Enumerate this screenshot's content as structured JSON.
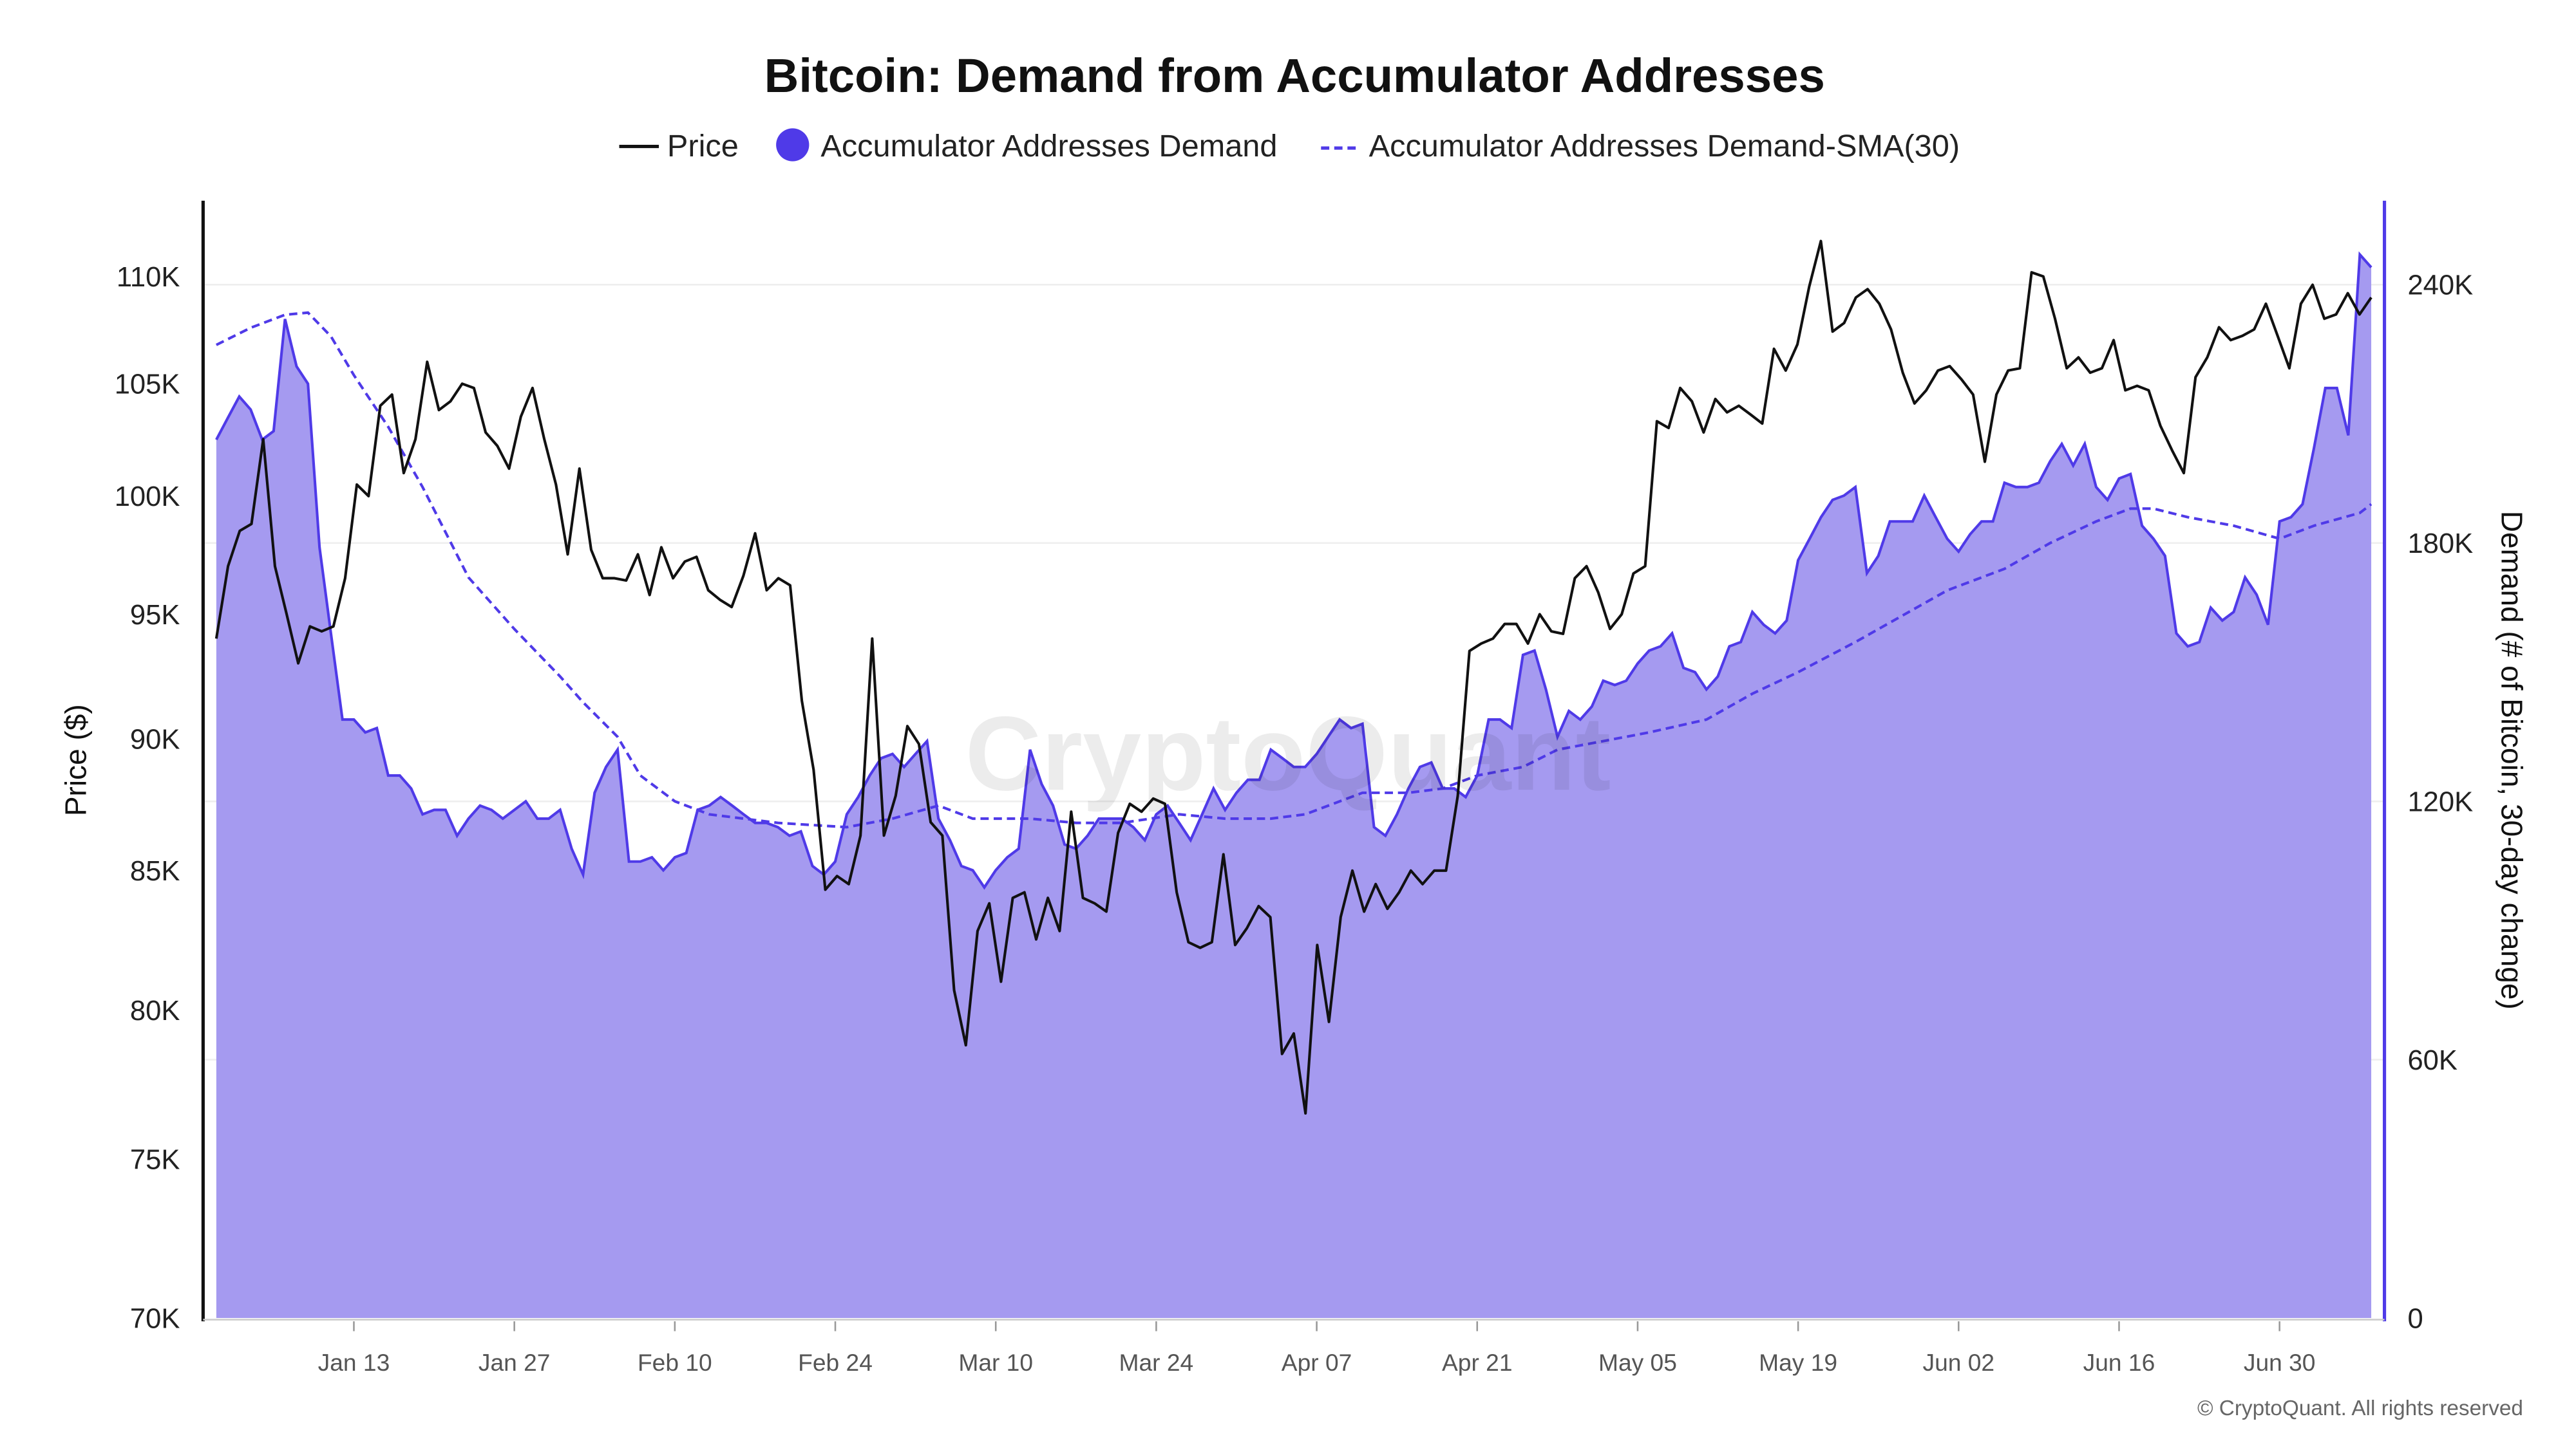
{
  "chart_data": {
    "type": "line",
    "title": "Bitcoin: Demand from Accumulator Addresses",
    "legend": [
      {
        "label": "Price",
        "color": "#111111",
        "style": "solid-line"
      },
      {
        "label": "Accumulator Addresses Demand",
        "color": "#4f3ae8",
        "style": "area"
      },
      {
        "label": "Accumulator Addresses Demand-SMA(30)",
        "color": "#4f3ae8",
        "style": "dashed-line"
      }
    ],
    "legend_position": "top-center",
    "x_range_days": [
      0,
      188
    ],
    "x_ticks": [
      {
        "day": 12,
        "label": "Jan 13"
      },
      {
        "day": 26,
        "label": "Jan 27"
      },
      {
        "day": 40,
        "label": "Feb 10"
      },
      {
        "day": 54,
        "label": "Feb 24"
      },
      {
        "day": 68,
        "label": "Mar 10"
      },
      {
        "day": 82,
        "label": "Mar 24"
      },
      {
        "day": 96,
        "label": "Apr 07"
      },
      {
        "day": 110,
        "label": "Apr 21"
      },
      {
        "day": 124,
        "label": "May 05"
      },
      {
        "day": 138,
        "label": "May 19"
      },
      {
        "day": 152,
        "label": "Jun 02"
      },
      {
        "day": 166,
        "label": "Jun 16"
      },
      {
        "day": 180,
        "label": "Jun 30"
      }
    ],
    "y_left": {
      "label": "Price ($)",
      "scale": "log",
      "range": [
        70000,
        114000
      ],
      "ticks": [
        {
          "v": 70000,
          "label": "70K"
        },
        {
          "v": 75000,
          "label": "75K"
        },
        {
          "v": 80000,
          "label": "80K"
        },
        {
          "v": 85000,
          "label": "85K"
        },
        {
          "v": 90000,
          "label": "90K"
        },
        {
          "v": 95000,
          "label": "95K"
        },
        {
          "v": 100000,
          "label": "100K"
        },
        {
          "v": 105000,
          "label": "105K"
        },
        {
          "v": 110000,
          "label": "110K"
        }
      ]
    },
    "y_right": {
      "label": "Demand (# of Bitcoin, 30-day change)",
      "scale": "linear",
      "range": [
        0,
        260000
      ],
      "ticks": [
        {
          "v": 0,
          "label": "0"
        },
        {
          "v": 60000,
          "label": "60K"
        },
        {
          "v": 120000,
          "label": "120K"
        },
        {
          "v": 180000,
          "label": "180K"
        },
        {
          "v": 240000,
          "label": "240K"
        }
      ]
    },
    "grid": true,
    "price_k": [
      94.0,
      97,
      98.5,
      98.8,
      102.5,
      97,
      95,
      93,
      94.5,
      94.3,
      94.5,
      96.5,
      100.5,
      100,
      104,
      104.5,
      101,
      102.5,
      106,
      103.8,
      104.2,
      105,
      104.8,
      102.8,
      102.2,
      101.2,
      103.5,
      104.8,
      102.5,
      100.5,
      97.5,
      101.2,
      97.7,
      96.5,
      96.5,
      96.4,
      97.5,
      95.8,
      97.8,
      96.5,
      97.2,
      97.4,
      96,
      95.6,
      95.3,
      96.6,
      98.4,
      96,
      96.5,
      96.2,
      91.5,
      88.8,
      84.3,
      84.8,
      84.5,
      86.3,
      94,
      86.3,
      87.8,
      90.5,
      89.8,
      86.8,
      86.3,
      80.7,
      78.8,
      82.8,
      83.8,
      81,
      84,
      84.2,
      82.5,
      84,
      82.8,
      87.2,
      84,
      83.8,
      83.5,
      86.4,
      87.5,
      87.2,
      87.7,
      87.5,
      84.2,
      82.4,
      82.2,
      82.4,
      85.6,
      82.3,
      82.9,
      83.7,
      83.3,
      78.5,
      79.2,
      76.5,
      82.3,
      79.6,
      83.3,
      85,
      83.5,
      84.5,
      83.6,
      84.2,
      85,
      84.5,
      85,
      85,
      87.8,
      93.5,
      93.8,
      94,
      94.6,
      94.6,
      93.8,
      95,
      94.3,
      94.2,
      96.5,
      97,
      95.9,
      94.4,
      95,
      96.7,
      97,
      103.3,
      103,
      104.8,
      104.2,
      102.8,
      104.3,
      103.7,
      104,
      103.6,
      103.2,
      106.6,
      105.6,
      106.8,
      109.5,
      111.7,
      107.4,
      107.8,
      109,
      109.4,
      108.7,
      107.5,
      105.5,
      104.1,
      104.7,
      105.6,
      105.8,
      105.2,
      104.5,
      101.5,
      104.5,
      105.6,
      105.7,
      110.2,
      110,
      108,
      105.7,
      106.2,
      105.5,
      105.7,
      107,
      104.7,
      104.9,
      104.7,
      103.1,
      102,
      101,
      105.3,
      106.2,
      107.6,
      107,
      107.2,
      107.5,
      108.7,
      107.2,
      105.7,
      108.7,
      109.6,
      108,
      108.2,
      109.2,
      108.2,
      109
    ],
    "demand_k": [
      204,
      209,
      214,
      211,
      204,
      206,
      232,
      221,
      217,
      179,
      159,
      139,
      139,
      136,
      137,
      126,
      126,
      123,
      117,
      118,
      118,
      112,
      116,
      119,
      118,
      116,
      118,
      120,
      116,
      116,
      118,
      109,
      103,
      122,
      128,
      132,
      106,
      106,
      107,
      104,
      107,
      108,
      118,
      119,
      121,
      119,
      117,
      115,
      115,
      114,
      112,
      113,
      105,
      103,
      106,
      117,
      121,
      126,
      130,
      131,
      128,
      131,
      134,
      116,
      111,
      105,
      104,
      100,
      104,
      107,
      109,
      132,
      124,
      119,
      110,
      109,
      112,
      116,
      116,
      116,
      114,
      111,
      117,
      119,
      115,
      111,
      117,
      123,
      118,
      122,
      125,
      125,
      132,
      130,
      128,
      128,
      131,
      135,
      139,
      137,
      138,
      114,
      112,
      117,
      123,
      128,
      129,
      123,
      123,
      121,
      126,
      139,
      139,
      137,
      154,
      155,
      146,
      135,
      141,
      139,
      142,
      148,
      147,
      148,
      152,
      155,
      156,
      159,
      151,
      150,
      146,
      149,
      156,
      157,
      164,
      161,
      159,
      162,
      176,
      181,
      186,
      190,
      191,
      193,
      173,
      177,
      185,
      185,
      185,
      191,
      186,
      181,
      178,
      182,
      185,
      185,
      194,
      193,
      193,
      194,
      199,
      203,
      198,
      203,
      193,
      190,
      195,
      196,
      184,
      181,
      177,
      159,
      156,
      157,
      165,
      162,
      164,
      172,
      168,
      161,
      185,
      186,
      189,
      202,
      216,
      216,
      205,
      247,
      244
    ],
    "sma_k": [
      [
        0,
        226
      ],
      [
        3,
        230
      ],
      [
        6,
        233
      ],
      [
        8,
        233.5
      ],
      [
        10,
        228
      ],
      [
        12,
        219
      ],
      [
        15,
        207
      ],
      [
        18,
        193
      ],
      [
        22,
        172
      ],
      [
        26,
        160
      ],
      [
        30,
        149
      ],
      [
        32,
        143
      ],
      [
        35,
        135
      ],
      [
        37,
        126
      ],
      [
        40,
        120
      ],
      [
        43,
        117
      ],
      [
        49,
        115
      ],
      [
        55,
        114
      ],
      [
        59,
        116
      ],
      [
        63,
        119
      ],
      [
        66,
        116
      ],
      [
        71,
        116
      ],
      [
        75,
        115
      ],
      [
        79,
        115
      ],
      [
        84,
        117
      ],
      [
        88,
        116
      ],
      [
        92,
        116
      ],
      [
        95,
        117
      ],
      [
        100,
        122
      ],
      [
        104,
        122
      ],
      [
        107,
        123
      ],
      [
        110,
        126
      ],
      [
        114,
        128
      ],
      [
        117,
        132
      ],
      [
        121,
        134
      ],
      [
        125,
        136
      ],
      [
        130,
        139
      ],
      [
        134,
        145
      ],
      [
        138,
        150
      ],
      [
        143,
        157
      ],
      [
        147,
        163
      ],
      [
        151,
        169
      ],
      [
        156,
        174
      ],
      [
        160,
        180
      ],
      [
        164,
        185
      ],
      [
        167,
        188
      ],
      [
        169,
        188
      ],
      [
        172,
        186
      ],
      [
        176,
        184
      ],
      [
        180,
        181
      ],
      [
        183,
        184
      ],
      [
        187,
        187
      ],
      [
        188,
        189
      ]
    ]
  },
  "watermark": "CryptoQuant",
  "copyright": "© CryptoQuant. All rights reserved"
}
